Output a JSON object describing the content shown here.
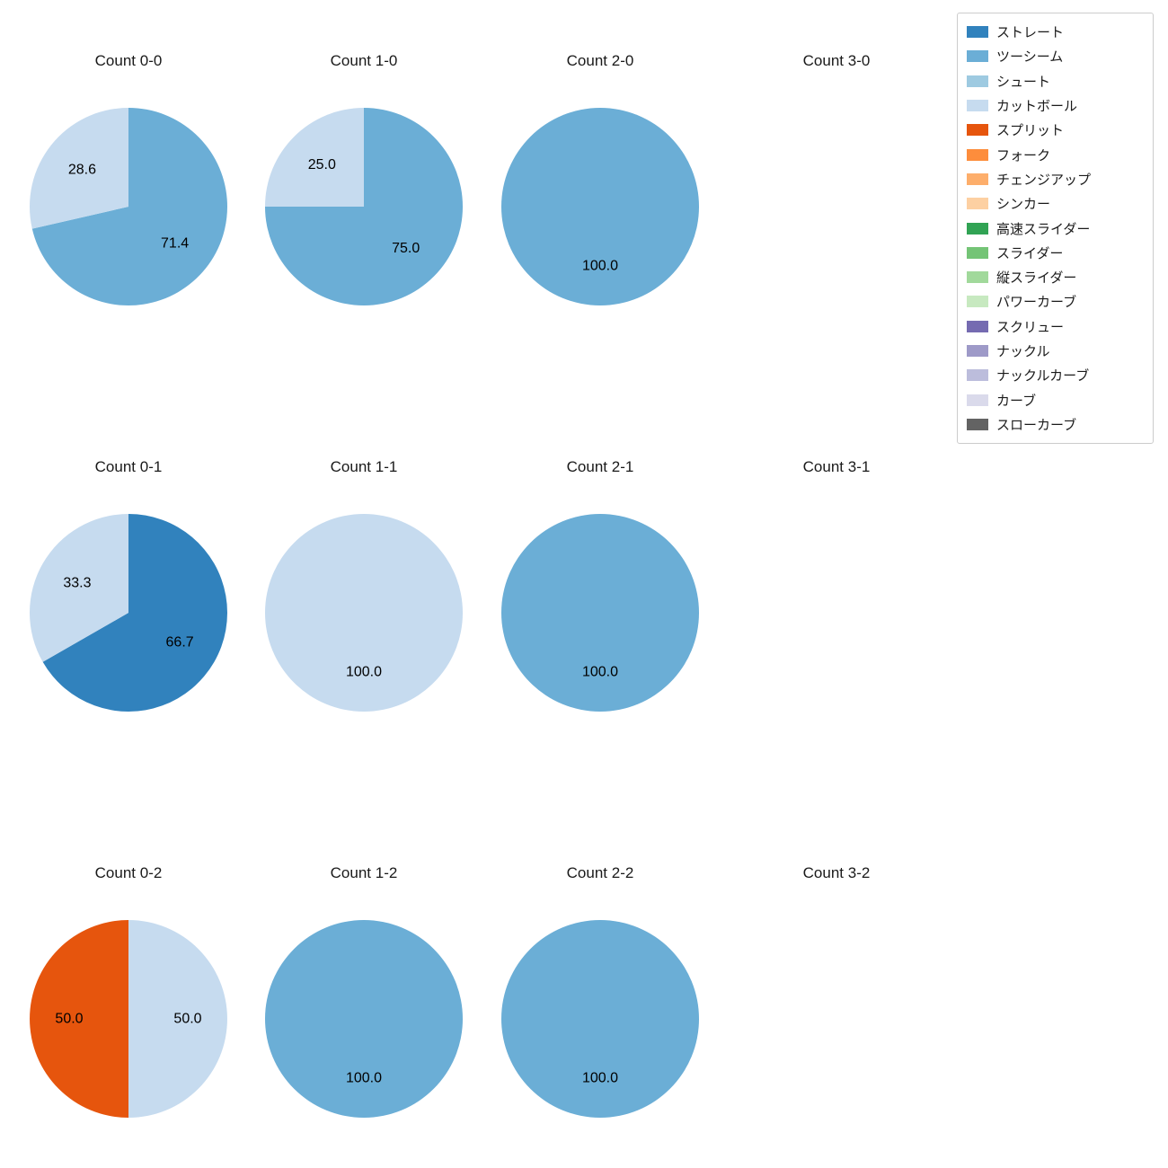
{
  "figure": {
    "background": "#ffffff",
    "text_color": "#1a1a1a"
  },
  "legend": {
    "items": [
      {
        "label": "ストレート",
        "color": "#3182bd"
      },
      {
        "label": "ツーシーム",
        "color": "#6baed6"
      },
      {
        "label": "シュート",
        "color": "#9ecae1"
      },
      {
        "label": "カットボール",
        "color": "#c6dbef"
      },
      {
        "label": "スプリット",
        "color": "#e6550d"
      },
      {
        "label": "フォーク",
        "color": "#fd8d3c"
      },
      {
        "label": "チェンジアップ",
        "color": "#fdae6b"
      },
      {
        "label": "シンカー",
        "color": "#fdd0a2"
      },
      {
        "label": "高速スライダー",
        "color": "#31a354"
      },
      {
        "label": "スライダー",
        "color": "#74c476"
      },
      {
        "label": "縦スライダー",
        "color": "#a1d99b"
      },
      {
        "label": "パワーカーブ",
        "color": "#c7e9c0"
      },
      {
        "label": "スクリュー",
        "color": "#756bb1"
      },
      {
        "label": "ナックル",
        "color": "#9e9ac8"
      },
      {
        "label": "ナックルカーブ",
        "color": "#bcbddc"
      },
      {
        "label": "カーブ",
        "color": "#dadaeb"
      },
      {
        "label": "スローカーブ",
        "color": "#636363"
      }
    ]
  },
  "chart_data": [
    {
      "type": "pie",
      "title": "Count 0-0",
      "start_angle": 90,
      "direction": "clockwise",
      "slices": [
        {
          "name": "ツーシーム",
          "value": 71.4,
          "pct_label": "71.4"
        },
        {
          "name": "カットボール",
          "value": 28.6,
          "pct_label": "28.6"
        }
      ]
    },
    {
      "type": "pie",
      "title": "Count 1-0",
      "start_angle": 90,
      "direction": "clockwise",
      "slices": [
        {
          "name": "ツーシーム",
          "value": 75.0,
          "pct_label": "75.0"
        },
        {
          "name": "カットボール",
          "value": 25.0,
          "pct_label": "25.0"
        }
      ]
    },
    {
      "type": "pie",
      "title": "Count 2-0",
      "start_angle": 90,
      "direction": "clockwise",
      "slices": [
        {
          "name": "ツーシーム",
          "value": 100.0,
          "pct_label": "100.0"
        }
      ]
    },
    {
      "type": "pie",
      "title": "Count 3-0",
      "start_angle": 90,
      "direction": "clockwise",
      "slices": []
    },
    {
      "type": "pie",
      "title": "Count 0-1",
      "start_angle": 90,
      "direction": "clockwise",
      "slices": [
        {
          "name": "ストレート",
          "value": 66.7,
          "pct_label": "66.7"
        },
        {
          "name": "カットボール",
          "value": 33.3,
          "pct_label": "33.3"
        }
      ]
    },
    {
      "type": "pie",
      "title": "Count 1-1",
      "start_angle": 90,
      "direction": "clockwise",
      "slices": [
        {
          "name": "カットボール",
          "value": 100.0,
          "pct_label": "100.0"
        }
      ]
    },
    {
      "type": "pie",
      "title": "Count 2-1",
      "start_angle": 90,
      "direction": "clockwise",
      "slices": [
        {
          "name": "ツーシーム",
          "value": 100.0,
          "pct_label": "100.0"
        }
      ]
    },
    {
      "type": "pie",
      "title": "Count 3-1",
      "start_angle": 90,
      "direction": "clockwise",
      "slices": []
    },
    {
      "type": "pie",
      "title": "Count 0-2",
      "start_angle": 90,
      "direction": "clockwise",
      "slices": [
        {
          "name": "カットボール",
          "value": 50.0,
          "pct_label": "50.0"
        },
        {
          "name": "スプリット",
          "value": 50.0,
          "pct_label": "50.0"
        }
      ]
    },
    {
      "type": "pie",
      "title": "Count 1-2",
      "start_angle": 90,
      "direction": "clockwise",
      "slices": [
        {
          "name": "ツーシーム",
          "value": 100.0,
          "pct_label": "100.0"
        }
      ]
    },
    {
      "type": "pie",
      "title": "Count 2-2",
      "start_angle": 90,
      "direction": "clockwise",
      "slices": [
        {
          "name": "ツーシーム",
          "value": 100.0,
          "pct_label": "100.0"
        }
      ]
    },
    {
      "type": "pie",
      "title": "Count 3-2",
      "start_angle": 90,
      "direction": "clockwise",
      "slices": []
    }
  ]
}
